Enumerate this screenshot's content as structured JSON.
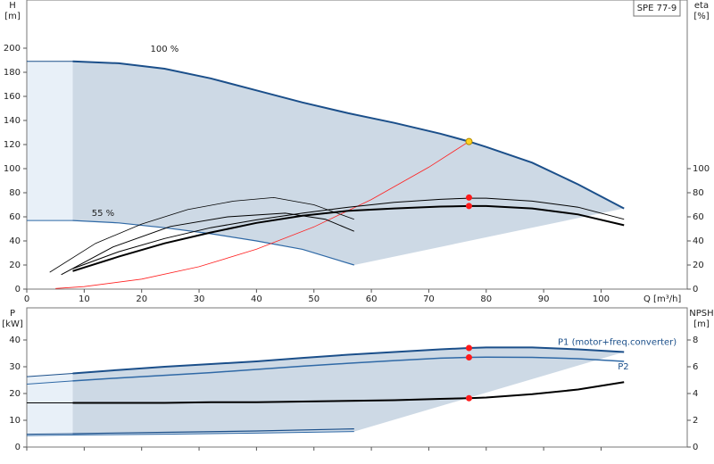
{
  "chart_data": [
    {
      "type": "line",
      "id_text": "SPE 77-9",
      "y_label": "H",
      "y_unit": "[m]",
      "y2_label": "eta",
      "y2_unit": "[%]",
      "x_label": "Q [m³/h]",
      "xlim": [
        0,
        115
      ],
      "xticks": [
        0,
        10,
        20,
        30,
        40,
        50,
        60,
        70,
        80,
        90,
        100
      ],
      "ylim": [
        0,
        240
      ],
      "yticks": [
        0,
        20,
        40,
        60,
        80,
        100,
        120,
        140,
        160,
        180,
        200
      ],
      "y2lim": [
        0,
        240
      ],
      "y2ticks": [
        0,
        20,
        40,
        60,
        80,
        100
      ],
      "band_colors": {
        "main": "#cdd9e5",
        "low": "#e8f0f8"
      },
      "series": [
        {
          "name": "100 %",
          "color": "#1b4f8a",
          "width": 2,
          "band": "main-top",
          "x": [
            8,
            16,
            24,
            32,
            40,
            48,
            56,
            64,
            72,
            77,
            80,
            88,
            96,
            104
          ],
          "values": [
            189,
            187.5,
            183,
            175,
            165,
            155,
            146,
            138,
            129,
            122.5,
            118,
            105,
            87,
            67
          ]
        },
        {
          "color": "#1b4f8a",
          "width": 1,
          "band": "low-top",
          "x": [
            0,
            8
          ],
          "values": [
            189,
            189
          ]
        },
        {
          "name": "55 %",
          "color": "#2f69a6",
          "width": 1.2,
          "band": "main-bottom",
          "x": [
            8,
            16,
            24,
            32,
            40,
            48,
            57
          ],
          "values": [
            57,
            55,
            51,
            46,
            40,
            33,
            20
          ]
        },
        {
          "color": "#2f69a6",
          "width": 1,
          "band": "low-bottom",
          "x": [
            0,
            8
          ],
          "values": [
            57,
            57
          ]
        },
        {
          "color": "#ff2020",
          "width": 0.8,
          "x": [
            5,
            10,
            20,
            30,
            40,
            50,
            60,
            70,
            77
          ],
          "values": [
            0.5,
            2.1,
            8.3,
            18.6,
            33.1,
            51.6,
            74.4,
            101.2,
            122.5
          ]
        },
        {
          "color": "#000000",
          "width": 1,
          "axis": "y2",
          "x": [
            8,
            16,
            24,
            32,
            40,
            48,
            56,
            64,
            72,
            77,
            80,
            88,
            96,
            104
          ],
          "values": [
            17,
            31,
            42,
            51,
            57.5,
            63,
            68,
            72,
            74.5,
            75.5,
            75.5,
            73,
            68,
            58
          ]
        },
        {
          "color": "#000000",
          "width": 2,
          "axis": "y2",
          "x": [
            8,
            16,
            24,
            32,
            40,
            48,
            56,
            64,
            72,
            77,
            80,
            88,
            96,
            104
          ],
          "values": [
            15,
            27,
            38,
            47,
            55,
            61,
            65,
            67,
            68.5,
            69,
            69,
            67,
            62,
            53
          ]
        },
        {
          "color": "#000000",
          "width": 0.8,
          "axis": "y2",
          "x": [
            4,
            12,
            20,
            28,
            36,
            43,
            50,
            57
          ],
          "values": [
            14,
            38,
            54,
            66,
            73,
            76,
            70,
            58
          ]
        },
        {
          "color": "#000000",
          "width": 1,
          "axis": "y2",
          "x": [
            6,
            15,
            25,
            35,
            45,
            52,
            57
          ],
          "values": [
            12,
            35,
            52,
            60,
            63,
            58,
            48
          ]
        }
      ],
      "points": [
        {
          "x": 77,
          "y": 122.5,
          "color": "#ffd21f"
        },
        {
          "x": 77,
          "y": 76,
          "color": "#ff1a1a",
          "axis": "y2"
        },
        {
          "x": 77,
          "y": 69,
          "color": "#ff1a1a",
          "axis": "y2"
        }
      ]
    },
    {
      "type": "line",
      "y_label": "P",
      "y_unit": "[kW]",
      "y2_label": "NPSH",
      "y2_unit": "[m]",
      "xlim": [
        0,
        115
      ],
      "xticks": [
        0,
        10,
        20,
        30,
        40,
        50,
        60,
        70,
        80,
        90,
        100
      ],
      "ylim": [
        0,
        52
      ],
      "yticks": [
        0,
        10,
        20,
        30,
        40
      ],
      "y2lim": [
        0,
        10.4
      ],
      "y2ticks": [
        0,
        2,
        4,
        6,
        8
      ],
      "band_colors": {
        "main": "#cdd9e5",
        "low": "#e8f0f8"
      },
      "series": [
        {
          "name": "P1 (motor+freq.converter)",
          "color": "#1b4f8a",
          "width": 2,
          "band": "main-top",
          "x": [
            8,
            16,
            24,
            32,
            40,
            48,
            56,
            64,
            72,
            77,
            80,
            88,
            96,
            104
          ],
          "values": [
            27.5,
            28.8,
            30,
            31,
            32,
            33.3,
            34.5,
            35.5,
            36.5,
            37,
            37.2,
            37.2,
            36.5,
            35.5
          ]
        },
        {
          "color": "#1b4f8a",
          "width": 1,
          "band": "low-top",
          "x": [
            0,
            8
          ],
          "values": [
            26.3,
            27.5
          ]
        },
        {
          "name": "P2",
          "color": "#2f69a6",
          "width": 1.5,
          "x": [
            8,
            16,
            24,
            32,
            40,
            48,
            56,
            64,
            72,
            77,
            80,
            88,
            96,
            104
          ],
          "values": [
            24.7,
            25.8,
            26.8,
            27.8,
            29,
            30.2,
            31.3,
            32.3,
            33.2,
            33.5,
            33.6,
            33.5,
            33,
            32
          ]
        },
        {
          "color": "#2f69a6",
          "width": 1,
          "x": [
            0,
            8
          ],
          "values": [
            23.5,
            24.7
          ]
        },
        {
          "color": "#1b4f8a",
          "width": 1.2,
          "x": [
            8,
            24,
            40,
            57
          ],
          "values": [
            5,
            5.5,
            6,
            6.8
          ]
        },
        {
          "color": "#1b4f8a",
          "width": 1,
          "band": "low-bottom",
          "x": [
            0,
            8
          ],
          "values": [
            4.8,
            5
          ]
        },
        {
          "color": "#2f69a6",
          "width": 1,
          "band": "main-bottom",
          "x": [
            8,
            24,
            40,
            57
          ],
          "values": [
            4.5,
            4.8,
            5.2,
            5.8
          ]
        },
        {
          "color": "#2f69a6",
          "width": 1,
          "x": [
            0,
            8
          ],
          "values": [
            4.3,
            4.5
          ]
        },
        {
          "color": "#000000",
          "width": 2,
          "axis": "y2",
          "x": [
            8,
            16,
            24,
            32,
            40,
            48,
            56,
            64,
            72,
            77,
            80,
            88,
            96,
            104
          ],
          "values": [
            3.3,
            3.3,
            3.3,
            3.35,
            3.35,
            3.4,
            3.45,
            3.5,
            3.6,
            3.65,
            3.7,
            3.95,
            4.3,
            4.85
          ]
        },
        {
          "color": "#000000",
          "width": 1,
          "axis": "y2",
          "x": [
            0,
            8
          ],
          "values": [
            3.3,
            3.3
          ]
        }
      ],
      "points": [
        {
          "x": 77,
          "y": 37,
          "color": "#ff1a1a"
        },
        {
          "x": 77,
          "y": 33.5,
          "color": "#ff1a1a"
        },
        {
          "x": 77,
          "y": 3.65,
          "color": "#ff1a1a",
          "axis": "y2"
        }
      ]
    }
  ]
}
